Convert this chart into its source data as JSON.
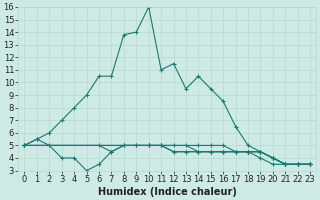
{
  "xlabel": "Humidex (Indice chaleur)",
  "main_x": [
    0,
    1,
    2,
    3,
    4,
    5,
    6,
    7,
    8,
    9,
    10,
    11,
    12,
    13,
    14,
    15,
    16,
    17,
    18,
    19,
    20,
    21,
    22,
    23
  ],
  "main_y": [
    5.0,
    5.5,
    6.0,
    7.0,
    8.0,
    9.0,
    10.5,
    10.5,
    13.8,
    14.0,
    16.0,
    11.0,
    11.5,
    9.5,
    10.5,
    9.5,
    8.5,
    6.5,
    5.0,
    4.5,
    4.0,
    3.5,
    3.5,
    3.5
  ],
  "s1_x": [
    0,
    1,
    2,
    3,
    4,
    5,
    6,
    7,
    8,
    9,
    10,
    11,
    12,
    13,
    14,
    15,
    16,
    17,
    18,
    19,
    20,
    21,
    22,
    23
  ],
  "s1_y": [
    5.0,
    5.5,
    5.0,
    4.0,
    4.0,
    3.0,
    3.5,
    4.5,
    5.0,
    5.0,
    5.0,
    5.0,
    4.5,
    4.5,
    4.5,
    4.5,
    4.5,
    4.5,
    4.5,
    4.0,
    3.5,
    3.5,
    3.5,
    3.5
  ],
  "s2_x": [
    0,
    6,
    7,
    8,
    9,
    10,
    11,
    12,
    13,
    14,
    15,
    16,
    17,
    18,
    19,
    20,
    21,
    22,
    23
  ],
  "s2_y": [
    5.0,
    5.0,
    4.5,
    5.0,
    5.0,
    5.0,
    5.0,
    4.5,
    4.5,
    4.5,
    4.5,
    4.5,
    4.5,
    4.5,
    4.5,
    4.0,
    3.5,
    3.5,
    3.5
  ],
  "s3_x": [
    0,
    10,
    11,
    12,
    13,
    14,
    15,
    16,
    17,
    18,
    19,
    20,
    21,
    22,
    23
  ],
  "s3_y": [
    5.0,
    5.0,
    5.0,
    5.0,
    5.0,
    4.5,
    4.5,
    4.5,
    4.5,
    4.5,
    4.5,
    4.0,
    3.5,
    3.5,
    3.5
  ],
  "s4_x": [
    0,
    14,
    15,
    16,
    17,
    18,
    19,
    20,
    21,
    22,
    23
  ],
  "s4_y": [
    5.0,
    5.0,
    5.0,
    5.0,
    4.5,
    4.5,
    4.5,
    4.0,
    3.5,
    3.5,
    3.5
  ],
  "xlim": [
    -0.5,
    23.5
  ],
  "ylim": [
    3,
    16
  ],
  "yticks": [
    3,
    4,
    5,
    6,
    7,
    8,
    9,
    10,
    11,
    12,
    13,
    14,
    15,
    16
  ],
  "xticks": [
    0,
    1,
    2,
    3,
    4,
    5,
    6,
    7,
    8,
    9,
    10,
    11,
    12,
    13,
    14,
    15,
    16,
    17,
    18,
    19,
    20,
    21,
    22,
    23
  ],
  "line_color": "#1a7a6e",
  "bg_color": "#ceeae4",
  "grid_color": "#b8d8d2",
  "font_color": "#222222",
  "tick_fontsize": 6,
  "label_fontsize": 7
}
